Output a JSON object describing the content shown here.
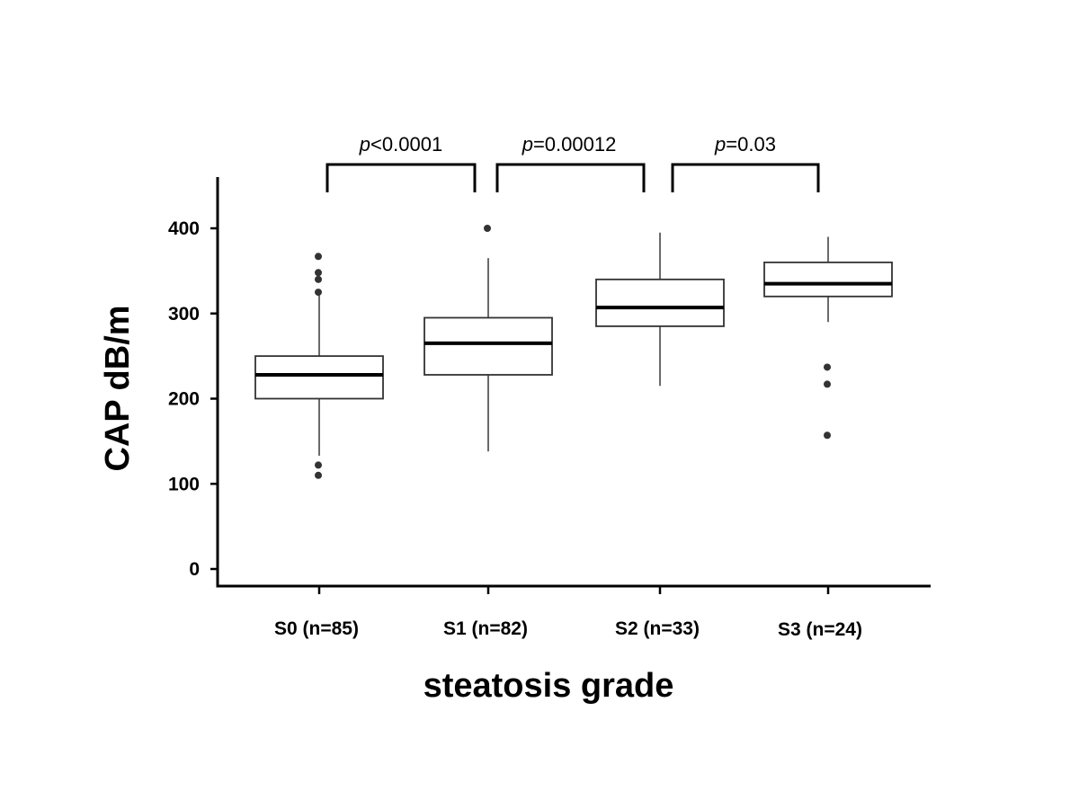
{
  "chart_data": {
    "type": "box",
    "xlabel": "steatosis grade",
    "ylabel": "CAP dB/m",
    "ylim": [
      0,
      450
    ],
    "yticks": [
      0,
      100,
      200,
      300,
      400
    ],
    "categories": [
      "S0 (n=85)",
      "S1 (n=82)",
      "S2 (n=33)",
      "S3 (n=24)"
    ],
    "boxes": [
      {
        "category": "S0 (n=85)",
        "whisker_low": 133,
        "q1": 200,
        "median": 228,
        "q3": 250,
        "whisker_high": 325,
        "outliers": [
          110,
          122,
          325,
          340,
          348,
          367
        ]
      },
      {
        "category": "S1 (n=82)",
        "whisker_low": 138,
        "q1": 228,
        "median": 265,
        "q3": 295,
        "whisker_high": 365,
        "outliers": [
          400
        ]
      },
      {
        "category": "S2 (n=33)",
        "whisker_low": 215,
        "q1": 285,
        "median": 307,
        "q3": 340,
        "whisker_high": 395,
        "outliers": []
      },
      {
        "category": "S3 (n=24)",
        "whisker_low": 290,
        "q1": 320,
        "median": 335,
        "q3": 360,
        "whisker_high": 390,
        "outliers": [
          157,
          217,
          237
        ]
      }
    ],
    "comparisons": [
      {
        "from": "S0 (n=85)",
        "to": "S1 (n=82)",
        "p_italic": "p",
        "p_rest": "<0.0001"
      },
      {
        "from": "S1 (n=82)",
        "to": "S2 (n=33)",
        "p_italic": "p",
        "p_rest": "=0.00012"
      },
      {
        "from": "S2 (n=33)",
        "to": "S3 (n=24)",
        "p_italic": "p",
        "p_rest": "=0.03"
      }
    ],
    "grid": false,
    "legend": "none"
  }
}
